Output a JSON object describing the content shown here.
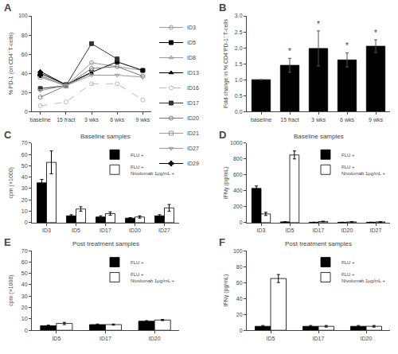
{
  "chart_data": [
    {
      "type": "line",
      "annotations": [
        {
          "text": "A"
        }
      ],
      "ylabel": "% PD-1 (on CD4⁺ T-cells)",
      "categories": [
        "baseline",
        "15 fract",
        "3 wks",
        "6 wks",
        "9 wks"
      ],
      "ylim": [
        0,
        100
      ],
      "yticks": [
        0,
        20,
        40,
        60,
        80,
        100
      ],
      "grid": false,
      "legend": "right",
      "series": [
        {
          "name": "ID3",
          "color": "#999999",
          "marker": "circle-open",
          "line_style": "solid",
          "values": [
            38,
            27,
            51,
            null,
            43
          ]
        },
        {
          "name": "ID5",
          "color": "#000000",
          "marker": "square",
          "line_style": "solid",
          "values": [
            40,
            28,
            41,
            52,
            43
          ]
        },
        {
          "name": "ID8",
          "color": "#999999",
          "marker": "triangle-up-open",
          "line_style": "solid",
          "values": [
            37,
            27,
            41,
            null,
            null
          ]
        },
        {
          "name": "ID13",
          "color": "#000000",
          "marker": "triangle-up",
          "line_style": "solid",
          "values": [
            42,
            28,
            41,
            null,
            null
          ]
        },
        {
          "name": "ID16",
          "color": "#bbbbbb",
          "marker": "circle-open",
          "line_style": "dash",
          "values": [
            6,
            10,
            29,
            29,
            12
          ]
        },
        {
          "name": "ID17",
          "color": "#333333",
          "marker": "square",
          "line_style": "solid",
          "values": [
            24,
            27,
            71,
            55,
            null
          ]
        },
        {
          "name": "ID20",
          "color": "#777777",
          "marker": "circle-open",
          "line_style": "solid",
          "values": [
            15,
            27,
            45,
            47,
            37
          ]
        },
        {
          "name": "ID21",
          "color": "#999999",
          "marker": "square-open",
          "line_style": "solid",
          "values": [
            36,
            27,
            40,
            null,
            null
          ]
        },
        {
          "name": "ID27",
          "color": "#999999",
          "marker": "triangle-down-open",
          "line_style": "solid",
          "values": [
            22,
            27,
            38,
            38,
            36
          ]
        },
        {
          "name": "ID29",
          "color": "#000000",
          "marker": "cross",
          "line_style": "solid",
          "values": [
            38,
            null,
            null,
            null,
            null
          ]
        }
      ]
    },
    {
      "type": "bar",
      "annotations": [
        {
          "text": "B"
        },
        {
          "text": "*",
          "x": "15 fract"
        },
        {
          "text": "*",
          "x": "3 wks"
        },
        {
          "text": "*",
          "x": "6 wks"
        },
        {
          "text": "*",
          "x": "9 wks"
        }
      ],
      "ylabel": "Fold change in % CD4⁺PD-1⁺ T-cells",
      "categories": [
        "baseline",
        "15 fract",
        "3 wks",
        "6 wks",
        "9 wks"
      ],
      "values": [
        1.0,
        1.45,
        1.98,
        1.62,
        2.05
      ],
      "errors": [
        0.0,
        0.22,
        0.55,
        0.22,
        0.2
      ],
      "color": "#000000",
      "ylim": [
        0,
        3.0
      ],
      "yticks": [
        {
          "value": 0,
          "label": "0.0"
        },
        0.5,
        {
          "value": 1,
          "label": "1.0"
        },
        1.5,
        {
          "value": 2,
          "label": "2.0"
        },
        2.5,
        {
          "value": 3,
          "label": "3.0"
        }
      ],
      "grid": false
    },
    {
      "type": "bar",
      "title": "Baseline samples",
      "annotations": [
        {
          "text": "C"
        }
      ],
      "ylabel": "cpm (×1000)",
      "categories": [
        "ID3",
        "ID5",
        "ID17",
        "ID20",
        "ID27"
      ],
      "ylim": [
        0,
        70
      ],
      "yticks": [
        0,
        10,
        20,
        30,
        40,
        50,
        60,
        70
      ],
      "grid": false,
      "legend": "upper right",
      "series": [
        {
          "name": "FLU +",
          "color": "#000000",
          "values": [
            35,
            6,
            5,
            4,
            6
          ],
          "errors": [
            3,
            1,
            1,
            0.5,
            1
          ]
        },
        {
          "name": "FLU +\nNivolumab 1μg/mL +",
          "color": "#ffffff",
          "values": [
            53,
            12,
            8,
            5,
            13
          ],
          "errors": [
            10,
            2,
            1.5,
            1,
            3
          ]
        }
      ]
    },
    {
      "type": "bar",
      "title": "Baseline samples",
      "annotations": [
        {
          "text": "D"
        }
      ],
      "ylabel": "IFNγ (pg/mL)",
      "categories": [
        "ID3",
        "ID5",
        "ID17",
        "ID20",
        "ID27"
      ],
      "ylim": [
        0,
        1000
      ],
      "yticks": [
        0,
        200,
        400,
        600,
        800,
        1000
      ],
      "grid": false,
      "legend": "upper right",
      "series": [
        {
          "name": "FLU +",
          "color": "#000000",
          "values": [
            430,
            10,
            5,
            5,
            5
          ],
          "errors": [
            30,
            2,
            1,
            1,
            1
          ]
        },
        {
          "name": "FLU +\nNivolumab 1μg/mL +",
          "color": "#ffffff",
          "values": [
            110,
            850,
            15,
            10,
            10
          ],
          "errors": [
            20,
            50,
            3,
            2,
            2
          ]
        }
      ]
    },
    {
      "type": "bar",
      "title": "Post treatment samples",
      "annotations": [
        {
          "text": "E"
        }
      ],
      "ylabel": "cpm (×1000)",
      "categories": [
        "ID5",
        "ID17",
        "ID20"
      ],
      "ylim": [
        0,
        70
      ],
      "yticks": [
        0,
        10,
        20,
        30,
        40,
        50,
        60,
        70
      ],
      "grid": false,
      "legend": "upper right",
      "series": [
        {
          "name": "FLU +",
          "color": "#000000",
          "values": [
            4,
            5,
            8
          ],
          "errors": [
            0.5,
            0.5,
            0.5
          ]
        },
        {
          "name": "FLU +\nNivolumab 1μg/mL +",
          "color": "#ffffff",
          "values": [
            6,
            5,
            9
          ],
          "errors": [
            1,
            0.5,
            0.5
          ]
        }
      ]
    },
    {
      "type": "bar",
      "title": "Post treatment samples",
      "annotations": [
        {
          "text": "F"
        }
      ],
      "ylabel": "IFNγ (pg/mL)",
      "categories": [
        "ID5",
        "ID17",
        "ID20"
      ],
      "ylim": [
        0,
        100
      ],
      "yticks": [
        0,
        20,
        40,
        60,
        80,
        100
      ],
      "grid": false,
      "legend": "upper right",
      "series": [
        {
          "name": "FLU +",
          "color": "#000000",
          "values": [
            5,
            5,
            5
          ],
          "errors": [
            1,
            1,
            1
          ]
        },
        {
          "name": "FLU +\nNivolumab 1μg/mL +",
          "color": "#ffffff",
          "values": [
            65,
            5,
            5
          ],
          "errors": [
            5,
            1,
            1
          ]
        }
      ]
    }
  ]
}
